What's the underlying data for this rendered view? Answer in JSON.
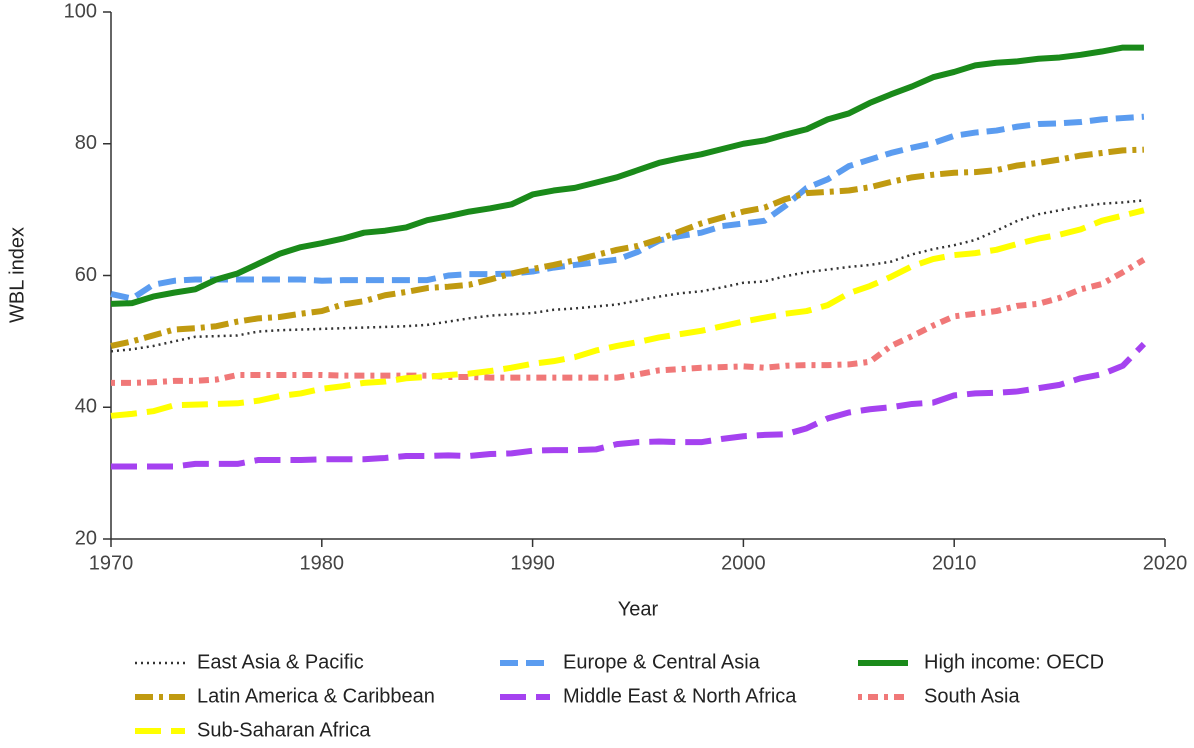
{
  "chart_data": {
    "type": "line",
    "xlabel": "Year",
    "ylabel": "WBL index",
    "x": [
      1970,
      1971,
      1972,
      1973,
      1974,
      1975,
      1976,
      1977,
      1978,
      1979,
      1980,
      1981,
      1982,
      1983,
      1984,
      1985,
      1986,
      1987,
      1988,
      1989,
      1990,
      1991,
      1992,
      1993,
      1994,
      1995,
      1996,
      1997,
      1998,
      1999,
      2000,
      2001,
      2002,
      2003,
      2004,
      2005,
      2006,
      2007,
      2008,
      2009,
      2010,
      2011,
      2012,
      2013,
      2014,
      2015,
      2016,
      2017,
      2018,
      2019
    ],
    "xlim": [
      1970,
      2020
    ],
    "xticks": [
      1970,
      1980,
      1990,
      2000,
      2010,
      2020
    ],
    "ylim": [
      20,
      100
    ],
    "yticks": [
      20,
      40,
      60,
      80,
      100
    ],
    "legend_position": "bottom",
    "series": [
      {
        "name": "East Asia & Pacific",
        "color": "#333333",
        "linestyle": "dotted",
        "values": [
          48.5,
          48.8,
          49.3,
          50.0,
          50.7,
          50.8,
          50.9,
          51.5,
          51.7,
          51.8,
          51.9,
          52.0,
          52.1,
          52.2,
          52.3,
          52.5,
          53.0,
          53.5,
          53.9,
          54.1,
          54.3,
          54.8,
          55.0,
          55.3,
          55.6,
          56.2,
          56.8,
          57.3,
          57.6,
          58.2,
          58.9,
          59.1,
          59.9,
          60.5,
          60.9,
          61.3,
          61.6,
          62.1,
          63.2,
          64.0,
          64.6,
          65.4,
          66.8,
          68.3,
          69.3,
          69.9,
          70.5,
          70.9,
          71.1,
          71.4
        ]
      },
      {
        "name": "Europe & Central Asia",
        "color": "#5b9cf0",
        "linestyle": "dashed",
        "values": [
          57.2,
          56.5,
          58.6,
          59.2,
          59.4,
          59.4,
          59.4,
          59.4,
          59.4,
          59.4,
          59.2,
          59.3,
          59.3,
          59.3,
          59.3,
          59.3,
          60.0,
          60.2,
          60.2,
          60.3,
          60.6,
          61.2,
          61.6,
          62.0,
          62.4,
          63.6,
          65.3,
          66.0,
          66.5,
          67.5,
          67.9,
          68.3,
          70.6,
          73.3,
          74.6,
          76.6,
          77.6,
          78.6,
          79.4,
          80.1,
          81.2,
          81.7,
          82.0,
          82.6,
          83.0,
          83.1,
          83.3,
          83.7,
          83.9,
          84.1
        ]
      },
      {
        "name": "High income: OECD",
        "color": "#1a8a1a",
        "linestyle": "solid",
        "values": [
          55.7,
          55.8,
          56.8,
          57.4,
          57.9,
          59.4,
          60.3,
          61.8,
          63.3,
          64.3,
          64.9,
          65.6,
          66.5,
          66.8,
          67.3,
          68.4,
          69.0,
          69.7,
          70.2,
          70.8,
          72.3,
          72.9,
          73.3,
          74.1,
          74.9,
          76.0,
          77.1,
          77.8,
          78.4,
          79.2,
          80.0,
          80.5,
          81.4,
          82.2,
          83.7,
          84.6,
          86.2,
          87.5,
          88.7,
          90.1,
          90.9,
          91.9,
          92.3,
          92.5,
          92.9,
          93.1,
          93.5,
          94.0,
          94.6,
          94.6
        ]
      },
      {
        "name": "Latin America & Caribbean",
        "color": "#c09a10",
        "linestyle": "dashdot",
        "values": [
          49.3,
          50.0,
          50.9,
          51.8,
          52.0,
          52.3,
          53.0,
          53.5,
          53.7,
          54.2,
          54.6,
          55.6,
          56.1,
          57.0,
          57.5,
          58.1,
          58.3,
          58.6,
          59.4,
          60.3,
          61.0,
          61.6,
          62.3,
          63.1,
          63.9,
          64.5,
          65.5,
          66.7,
          67.9,
          68.8,
          69.7,
          70.3,
          71.6,
          72.5,
          72.7,
          72.9,
          73.4,
          74.2,
          74.9,
          75.3,
          75.6,
          75.7,
          76.0,
          76.7,
          77.1,
          77.6,
          78.2,
          78.6,
          79.0,
          79.1
        ]
      },
      {
        "name": "Middle East & North Africa",
        "color": "#a542f0",
        "linestyle": "longdash",
        "values": [
          31.0,
          31.0,
          31.0,
          31.0,
          31.4,
          31.4,
          31.4,
          32.0,
          32.0,
          32.0,
          32.1,
          32.1,
          32.1,
          32.3,
          32.6,
          32.6,
          32.7,
          32.6,
          32.9,
          33.0,
          33.4,
          33.5,
          33.5,
          33.6,
          34.4,
          34.7,
          34.8,
          34.7,
          34.7,
          35.2,
          35.6,
          35.8,
          35.9,
          36.8,
          38.3,
          39.2,
          39.7,
          40.0,
          40.5,
          40.7,
          41.8,
          42.1,
          42.2,
          42.4,
          42.9,
          43.4,
          44.4,
          45.0,
          46.3,
          49.6
        ]
      },
      {
        "name": "South Asia",
        "color": "#f07878",
        "linestyle": "dotdash",
        "values": [
          43.7,
          43.7,
          43.8,
          44.0,
          44.0,
          44.2,
          44.9,
          44.9,
          44.9,
          44.9,
          44.9,
          44.8,
          44.8,
          44.8,
          44.8,
          44.8,
          44.6,
          44.6,
          44.5,
          44.5,
          44.5,
          44.5,
          44.5,
          44.5,
          44.5,
          45.0,
          45.6,
          45.8,
          46.0,
          46.1,
          46.2,
          46.0,
          46.3,
          46.4,
          46.4,
          46.5,
          46.9,
          49.3,
          50.8,
          52.4,
          53.8,
          54.2,
          54.6,
          55.4,
          55.7,
          56.6,
          57.9,
          58.7,
          60.5,
          62.4
        ]
      },
      {
        "name": "Sub-Saharan Africa",
        "color": "#ffff00",
        "linestyle": "longdash",
        "values": [
          38.7,
          39.0,
          39.4,
          40.3,
          40.4,
          40.5,
          40.6,
          41.0,
          41.7,
          42.1,
          42.8,
          43.2,
          43.7,
          43.9,
          44.4,
          44.6,
          44.9,
          45.1,
          45.5,
          46.0,
          46.6,
          47.0,
          47.6,
          48.6,
          49.3,
          49.9,
          50.6,
          51.1,
          51.6,
          52.3,
          53.0,
          53.6,
          54.2,
          54.6,
          55.5,
          57.3,
          58.4,
          59.8,
          61.4,
          62.5,
          63.1,
          63.4,
          63.9,
          64.8,
          65.6,
          66.2,
          67.0,
          68.3,
          69.1,
          69.9
        ]
      }
    ]
  }
}
